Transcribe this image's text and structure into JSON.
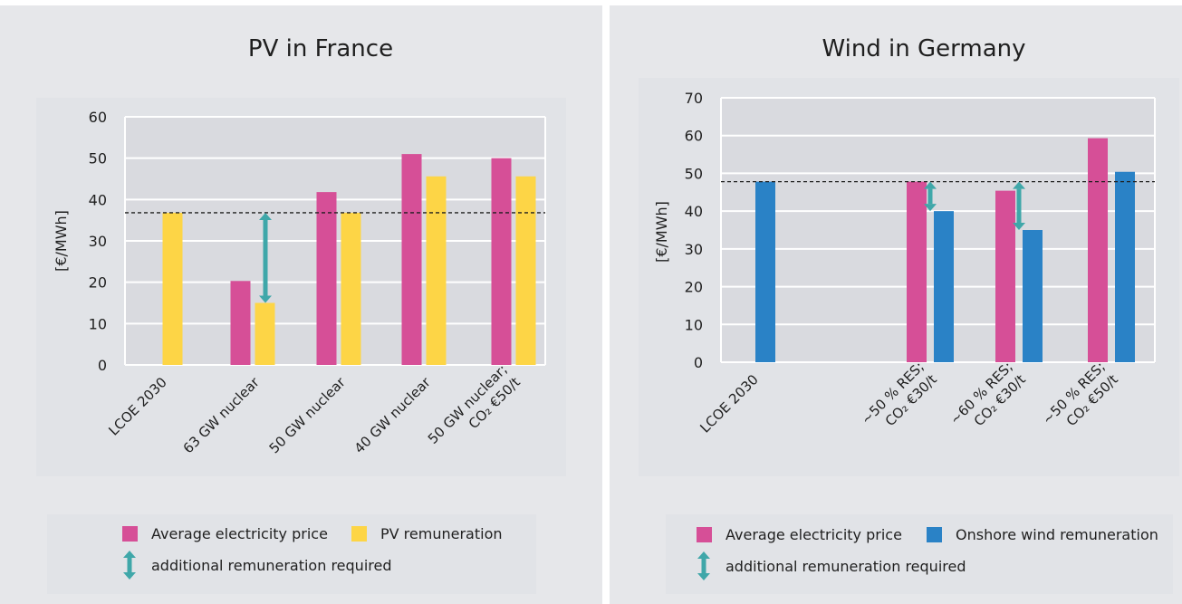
{
  "chart_data": [
    {
      "type": "bar",
      "title": "PV in France",
      "ylabel": "[€/MWh]",
      "ylim": [
        0,
        60
      ],
      "yticks": [
        0,
        10,
        20,
        30,
        40,
        50,
        60
      ],
      "categories": [
        [
          "LCOE 2030"
        ],
        [
          "63 GW nuclear"
        ],
        [
          "50 GW nuclear"
        ],
        [
          "40 GW nuclear"
        ],
        [
          "50 GW nuclear;",
          "CO₂ €50/t"
        ]
      ],
      "series": [
        {
          "name": "Average electricity price",
          "color": "#d64f97",
          "values": [
            null,
            20.3,
            41.8,
            51,
            50
          ]
        },
        {
          "name": "PV remuneration",
          "color": "#fdd546",
          "values": [
            36.8,
            15,
            36.8,
            45.6,
            45.6
          ]
        }
      ],
      "reference_line": 36.8,
      "arrows": [
        {
          "category": 1,
          "from": 15,
          "to": 36.8
        }
      ],
      "arrow_label": "additional remuneration required",
      "arrow_color": "#3fa7a9"
    },
    {
      "type": "bar",
      "title": "Wind in Germany",
      "ylabel": "[€/MWh]",
      "ylim": [
        0,
        70
      ],
      "yticks": [
        0,
        10,
        20,
        30,
        40,
        50,
        60,
        70
      ],
      "categories": [
        [
          "LCOE 2030"
        ],
        [
          "~50 % RES;",
          "CO₂ €30/t"
        ],
        [
          "~60 % RES;",
          "CO₂ €30/t"
        ],
        [
          "~50 % RES;",
          "CO₂ €50/t"
        ]
      ],
      "series": [
        {
          "name": "Average electricity price",
          "color": "#d64f97",
          "values": [
            null,
            47.8,
            45.4,
            59.3
          ]
        },
        {
          "name": "Onshore wind remuneration",
          "color": "#2a82c6",
          "values": [
            47.8,
            40,
            35,
            50.4
          ]
        }
      ],
      "reference_line": 47.8,
      "arrows": [
        {
          "category": 1,
          "from": 40,
          "to": 47.8
        },
        {
          "category": 2,
          "from": 35,
          "to": 47.8
        }
      ],
      "arrow_label": "additional remuneration required",
      "arrow_color": "#3fa7a9"
    }
  ]
}
